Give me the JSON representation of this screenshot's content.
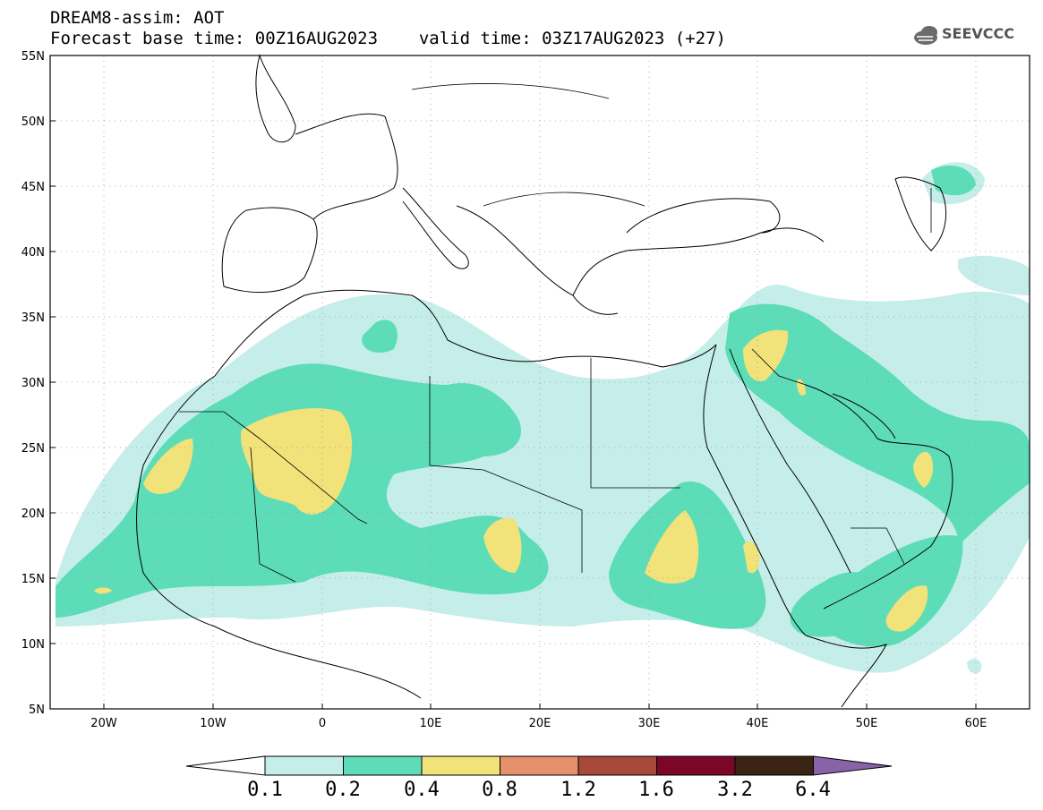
{
  "header": {
    "title_line1": "DREAM8-assim: AOT",
    "forecast_base": "Forecast base time: 00Z16AUG2023",
    "valid_time": "valid time: 03Z17AUG2023 (+27)"
  },
  "logo": {
    "text": "SEEVCCC",
    "icon": "cloud-icon"
  },
  "map": {
    "lat_labels": [
      "55N",
      "50N",
      "45N",
      "40N",
      "35N",
      "30N",
      "25N",
      "20N",
      "15N",
      "10N",
      "5N"
    ],
    "lon_labels": [
      "20W",
      "10W",
      "0",
      "10E",
      "20E",
      "30E",
      "40E",
      "50E",
      "60E"
    ],
    "extent": {
      "lon_min": -25,
      "lon_max": 65,
      "lat_min": 5,
      "lat_max": 55
    }
  },
  "colorbar": {
    "labels": [
      "0.1",
      "0.2",
      "0.4",
      "0.8",
      "1.2",
      "1.6",
      "3.2",
      "6.4"
    ],
    "colors": [
      "#ffffff",
      "#c5eeea",
      "#5ddcb8",
      "#f1e27a",
      "#e58f6b",
      "#a9493c",
      "#7b0628",
      "#3b2414",
      "#8763a8"
    ]
  },
  "palette": {
    "level1": "#c5eeea",
    "level2": "#5ddcb8",
    "level3": "#f1e27a"
  }
}
